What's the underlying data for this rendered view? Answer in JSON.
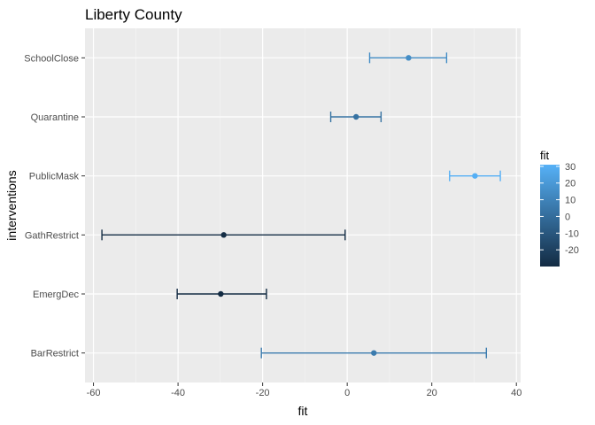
{
  "chart_data": {
    "type": "errorbar",
    "title": "Liberty County",
    "xlabel": "fit",
    "ylabel": "interventions",
    "xlim": [
      -62,
      41
    ],
    "xticks": [
      -60,
      -40,
      -20,
      0,
      20,
      40
    ],
    "grid": true,
    "categories": [
      "SchoolClose",
      "Quarantine",
      "PublicMask",
      "GathRestrict",
      "EmergDec",
      "BarRestrict"
    ],
    "points": [
      {
        "category": "SchoolClose",
        "fit": 14.5,
        "lower": 5.3,
        "upper": 23.5
      },
      {
        "category": "Quarantine",
        "fit": 2.1,
        "lower": -3.9,
        "upper": 8.0
      },
      {
        "category": "PublicMask",
        "fit": 30.2,
        "lower": 24.2,
        "upper": 36.2
      },
      {
        "category": "GathRestrict",
        "fit": -29.2,
        "lower": -58.0,
        "upper": -0.5
      },
      {
        "category": "EmergDec",
        "fit": -29.9,
        "lower": -40.2,
        "upper": -19.1
      },
      {
        "category": "BarRestrict",
        "fit": 6.3,
        "lower": -20.3,
        "upper": 32.9
      }
    ],
    "legend": {
      "title": "fit",
      "position": "right",
      "ticks": [
        30,
        20,
        10,
        0,
        -10,
        -20
      ],
      "range": [
        -30,
        31
      ],
      "color_low": "#132B43",
      "color_high": "#56B1F7"
    }
  },
  "colors": {
    "panel": "#ebebeb",
    "grid_major": "#ffffff",
    "grid_minor": "#f5f5f5",
    "tick": "#333333"
  }
}
